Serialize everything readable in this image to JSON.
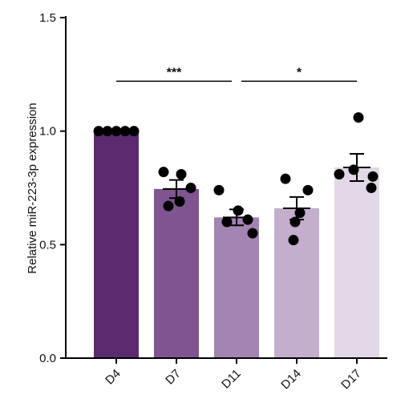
{
  "chart_data": {
    "type": "bar",
    "ylabel": "Relative miR-223-3p expression",
    "ylim": [
      0,
      1.5
    ],
    "yticks": [
      "0.0",
      "0.5",
      "1.0",
      "1.5"
    ],
    "categories": [
      "D4",
      "D7",
      "D11",
      "D14",
      "D17"
    ],
    "values": [
      1.0,
      0.745,
      0.62,
      0.66,
      0.84
    ],
    "sem": [
      0.0,
      0.04,
      0.035,
      0.05,
      0.06
    ],
    "bar_colors": [
      "#5c2a6e",
      "#7e5590",
      "#a384b3",
      "#c4aecd",
      "#e2d7e6"
    ],
    "points": [
      [
        1.0,
        1.0,
        1.0,
        1.0,
        1.0
      ],
      [
        0.82,
        0.81,
        0.75,
        0.69,
        0.67
      ],
      [
        0.74,
        0.65,
        0.61,
        0.6,
        0.55
      ],
      [
        0.79,
        0.74,
        0.64,
        0.6,
        0.52
      ],
      [
        1.06,
        0.83,
        0.81,
        0.8,
        0.75
      ]
    ],
    "significance": [
      {
        "from": "D4",
        "to": "D11",
        "label": "***",
        "y": 1.22
      },
      {
        "from": "D11",
        "to": "D17",
        "label": "*",
        "y": 1.22
      }
    ]
  }
}
